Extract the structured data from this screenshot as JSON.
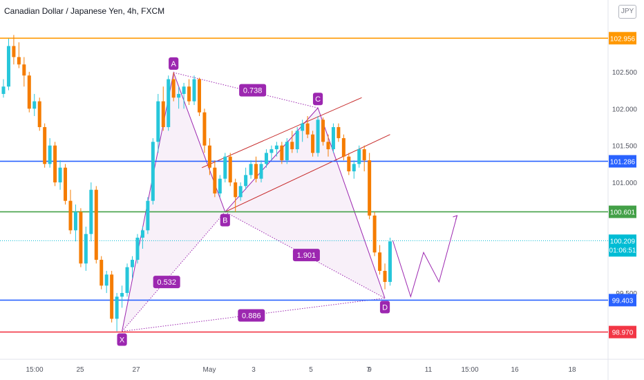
{
  "header": {
    "title": "Canadian Dollar / Japanese Yen, 4h, FXCM",
    "currency": "JPY"
  },
  "chart_data": {
    "type": "candlestick",
    "title": "Canadian Dollar / Japanese Yen, 4h, FXCM",
    "y_ticks": [
      "102.500",
      "102.000",
      "101.500",
      "101.000",
      "99.500"
    ],
    "x_ticks": [
      "15:00",
      "25",
      "27",
      "May",
      "3",
      "5",
      "7",
      "9",
      "11",
      "15:00",
      "16",
      "18"
    ],
    "ylim": [
      98.5,
      103.2
    ],
    "horizontal_levels": [
      {
        "label": "102.956",
        "value": 102.956,
        "color": "#ff9800"
      },
      {
        "label": "101.286",
        "value": 101.286,
        "color": "#2962ff"
      },
      {
        "label": "100.601",
        "value": 100.601,
        "color": "#43a047"
      },
      {
        "label": "99.403",
        "value": 99.403,
        "color": "#2962ff"
      },
      {
        "label": "98.970",
        "value": 98.97,
        "color": "#f23645"
      }
    ],
    "current_price": {
      "label": "100.209",
      "countdown": "01:06:51",
      "value": 100.209,
      "color": "#00bcd4"
    },
    "pattern_points": [
      {
        "label": "X",
        "value": 98.98
      },
      {
        "label": "A",
        "value": 102.49
      },
      {
        "label": "B",
        "value": 100.6
      },
      {
        "label": "C",
        "value": 102.01
      },
      {
        "label": "D",
        "value": 99.43
      }
    ],
    "ratios": [
      "0.738",
      "0.532",
      "1.901",
      "0.886"
    ],
    "candles": [
      [
        102.2,
        102.4,
        102.15,
        102.3
      ],
      [
        102.3,
        102.95,
        102.25,
        102.85
      ],
      [
        102.85,
        103.0,
        102.6,
        102.7
      ],
      [
        102.7,
        102.9,
        102.55,
        102.6
      ],
      [
        102.6,
        102.7,
        102.3,
        102.45
      ],
      [
        102.45,
        102.5,
        101.95,
        102.0
      ],
      [
        102.0,
        102.2,
        101.9,
        102.1
      ],
      [
        102.1,
        102.15,
        101.7,
        101.75
      ],
      [
        101.75,
        101.8,
        101.2,
        101.25
      ],
      [
        101.25,
        101.6,
        101.2,
        101.5
      ],
      [
        101.5,
        101.55,
        100.95,
        101.0
      ],
      [
        101.0,
        101.3,
        100.9,
        101.2
      ],
      [
        101.2,
        101.25,
        100.7,
        100.75
      ],
      [
        100.75,
        100.9,
        100.3,
        100.35
      ],
      [
        100.35,
        100.7,
        100.2,
        100.6
      ],
      [
        100.6,
        100.65,
        99.85,
        99.9
      ],
      [
        99.9,
        100.4,
        99.8,
        100.3
      ],
      [
        100.3,
        101.0,
        100.2,
        100.9
      ],
      [
        100.9,
        100.95,
        99.9,
        99.95
      ],
      [
        99.95,
        100.0,
        99.55,
        99.6
      ],
      [
        99.6,
        99.8,
        99.5,
        99.75
      ],
      [
        99.75,
        99.8,
        99.1,
        99.15
      ],
      [
        99.15,
        99.5,
        98.98,
        99.45
      ],
      [
        99.45,
        99.6,
        99.3,
        99.5
      ],
      [
        99.5,
        99.9,
        99.45,
        99.85
      ],
      [
        99.85,
        100.0,
        99.7,
        99.95
      ],
      [
        99.95,
        100.3,
        99.9,
        100.25
      ],
      [
        100.25,
        100.4,
        100.1,
        100.35
      ],
      [
        100.35,
        100.8,
        100.3,
        100.75
      ],
      [
        100.75,
        101.6,
        100.7,
        101.55
      ],
      [
        101.55,
        102.2,
        101.4,
        102.1
      ],
      [
        102.1,
        102.3,
        101.7,
        101.75
      ],
      [
        101.75,
        102.45,
        101.7,
        102.4
      ],
      [
        102.4,
        102.49,
        102.1,
        102.15
      ],
      [
        102.15,
        102.3,
        102.0,
        102.2
      ],
      [
        102.2,
        102.35,
        102.0,
        102.3
      ],
      [
        102.3,
        102.4,
        102.05,
        102.1
      ],
      [
        102.1,
        102.45,
        102.05,
        102.4
      ],
      [
        102.4,
        102.42,
        101.9,
        101.95
      ],
      [
        101.95,
        102.0,
        101.4,
        101.5
      ],
      [
        101.5,
        101.6,
        101.1,
        101.2
      ],
      [
        101.2,
        101.3,
        100.8,
        100.85
      ],
      [
        100.85,
        101.1,
        100.8,
        101.05
      ],
      [
        101.05,
        101.4,
        101.0,
        101.35
      ],
      [
        101.35,
        101.4,
        100.95,
        101.0
      ],
      [
        101.0,
        101.05,
        100.6,
        100.8
      ],
      [
        100.8,
        101.0,
        100.75,
        100.95
      ],
      [
        100.95,
        101.2,
        100.9,
        101.1
      ],
      [
        101.1,
        101.3,
        101.05,
        101.25
      ],
      [
        101.25,
        101.35,
        101.0,
        101.05
      ],
      [
        101.05,
        101.3,
        101.0,
        101.25
      ],
      [
        101.25,
        101.45,
        101.2,
        101.4
      ],
      [
        101.4,
        101.5,
        101.3,
        101.45
      ],
      [
        101.45,
        101.55,
        101.35,
        101.5
      ],
      [
        101.5,
        101.55,
        101.25,
        101.3
      ],
      [
        101.3,
        101.6,
        101.25,
        101.55
      ],
      [
        101.55,
        101.7,
        101.4,
        101.45
      ],
      [
        101.45,
        101.75,
        101.4,
        101.7
      ],
      [
        101.7,
        101.85,
        101.55,
        101.8
      ],
      [
        101.8,
        101.9,
        101.6,
        101.65
      ],
      [
        101.65,
        101.7,
        101.35,
        101.4
      ],
      [
        101.4,
        101.9,
        101.35,
        101.85
      ],
      [
        101.85,
        101.88,
        101.5,
        101.55
      ],
      [
        101.55,
        101.65,
        101.35,
        101.45
      ],
      [
        101.45,
        101.8,
        101.4,
        101.75
      ],
      [
        101.75,
        101.8,
        101.55,
        101.6
      ],
      [
        101.6,
        101.65,
        101.3,
        101.35
      ],
      [
        101.35,
        101.4,
        101.1,
        101.15
      ],
      [
        101.15,
        101.3,
        101.05,
        101.25
      ],
      [
        101.25,
        101.5,
        101.2,
        101.45
      ],
      [
        101.45,
        101.5,
        101.15,
        101.3
      ],
      [
        101.3,
        101.4,
        100.5,
        100.55
      ],
      [
        100.55,
        100.6,
        100.0,
        100.05
      ],
      [
        100.05,
        100.15,
        99.75,
        99.8
      ],
      [
        99.8,
        99.9,
        99.55,
        99.65
      ],
      [
        99.65,
        100.25,
        99.6,
        100.2
      ]
    ],
    "projection_values": [
      100.209,
      99.45,
      100.05,
      99.65,
      100.55
    ]
  }
}
